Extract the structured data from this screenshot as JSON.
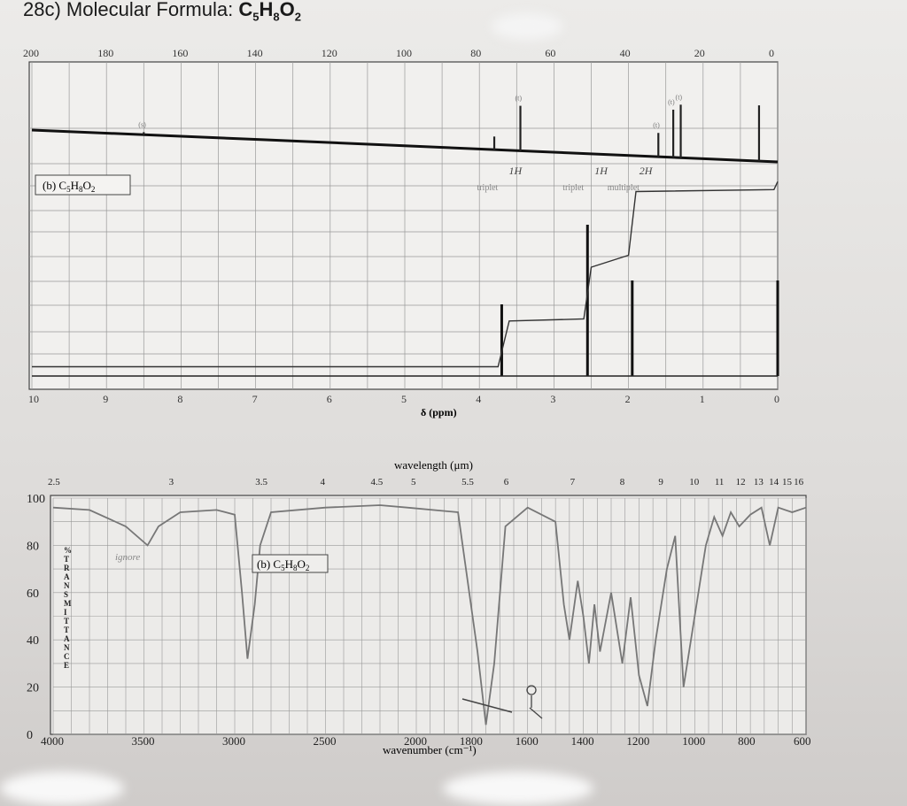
{
  "header": {
    "prefix": "28c) Molecular Formula: ",
    "formula": {
      "c": "C",
      "c_n": "5",
      "h": "H",
      "h_n": "8",
      "o": "O",
      "o_n": "2"
    }
  },
  "chart_data": [
    {
      "type": "line",
      "title": "",
      "panel": "13C NMR",
      "xlabel": "",
      "x_ticks": [
        200,
        180,
        160,
        140,
        120,
        100,
        80,
        60,
        40,
        20,
        0
      ],
      "xlim": [
        200,
        0
      ],
      "peaks": [
        {
          "x": 170,
          "intensity": 0.05,
          "label": "(s)"
        },
        {
          "x": 76,
          "intensity": 0.25,
          "label": ""
        },
        {
          "x": 69,
          "intensity": 0.85,
          "label": "(t)"
        },
        {
          "x": 32,
          "intensity": 0.45,
          "label": "(t)"
        },
        {
          "x": 28,
          "intensity": 0.9,
          "label": "(t)"
        },
        {
          "x": 26,
          "intensity": 1.0,
          "label": "(t)"
        },
        {
          "x": 5,
          "intensity": 1.05,
          "label": ""
        }
      ]
    },
    {
      "type": "line",
      "panel": "1H NMR",
      "title": "(b) C5H8O2",
      "label_parts": {
        "pre": "(b) C",
        "c": "5",
        "h": "H",
        "h_n": "8",
        "o": "O",
        "o_n": "2"
      },
      "xlabel": "δ (ppm)",
      "x_ticks": [
        10,
        9,
        8,
        7,
        6,
        5,
        4,
        3,
        2,
        1,
        0
      ],
      "xlim": [
        10,
        0
      ],
      "peaks": [
        {
          "x": 3.7,
          "height": 0.45,
          "multiplicity": "triplet",
          "integration": "1H"
        },
        {
          "x": 2.55,
          "height": 0.95,
          "multiplicity": "triplet",
          "integration": "1H"
        },
        {
          "x": 1.95,
          "height": 0.6,
          "multiplicity": "multiplet",
          "integration": "2H"
        },
        {
          "x": 0.0,
          "height": 0.6,
          "multiplicity": "",
          "integration": ""
        }
      ],
      "integration_curve": [
        [
          10,
          0.02
        ],
        [
          3.75,
          0.02
        ],
        [
          3.6,
          0.25
        ],
        [
          2.6,
          0.26
        ],
        [
          2.5,
          0.52
        ],
        [
          2.0,
          0.58
        ],
        [
          1.9,
          0.9
        ],
        [
          0.05,
          0.91
        ],
        [
          0.0,
          0.95
        ]
      ]
    },
    {
      "type": "line",
      "panel": "IR",
      "title": "(b) C5H8O2",
      "label_parts": {
        "pre": "(b) C",
        "c": "5",
        "h": "H",
        "h_n": "8",
        "o": "O",
        "o_n": "2"
      },
      "xlabel": "wavenumber (cm⁻¹)",
      "xlabel_top": "wavelength (μm)",
      "ylabel": "% TRANSMITTANCE",
      "y_ticks": [
        0,
        20,
        40,
        60,
        80,
        100
      ],
      "ylim": [
        0,
        100
      ],
      "x_ticks_bottom": [
        "4000",
        "3500",
        "3000",
        "2500",
        "2000",
        "1800",
        "1600",
        "1400",
        "1200",
        "1000",
        "800",
        "600"
      ],
      "x_ticks_top": [
        "2.5",
        "3",
        "3.5",
        "4",
        "4.5",
        "5",
        "5.5",
        "6",
        "7",
        "8",
        "9",
        "10",
        "11",
        "12",
        "13",
        "14",
        "15",
        "16"
      ],
      "annotation": "ignore",
      "spectrum": [
        [
          4000,
          96
        ],
        [
          3800,
          95
        ],
        [
          3600,
          88
        ],
        [
          3480,
          80
        ],
        [
          3420,
          88
        ],
        [
          3300,
          94
        ],
        [
          3100,
          95
        ],
        [
          3000,
          93
        ],
        [
          2960,
          60
        ],
        [
          2930,
          32
        ],
        [
          2890,
          55
        ],
        [
          2860,
          80
        ],
        [
          2800,
          94
        ],
        [
          2500,
          96
        ],
        [
          2200,
          97
        ],
        [
          2050,
          96
        ],
        [
          1850,
          94
        ],
        [
          1780,
          35
        ],
        [
          1750,
          4
        ],
        [
          1720,
          30
        ],
        [
          1680,
          88
        ],
        [
          1600,
          96
        ],
        [
          1500,
          90
        ],
        [
          1470,
          55
        ],
        [
          1450,
          40
        ],
        [
          1420,
          65
        ],
        [
          1400,
          50
        ],
        [
          1380,
          30
        ],
        [
          1360,
          55
        ],
        [
          1340,
          35
        ],
        [
          1300,
          60
        ],
        [
          1260,
          30
        ],
        [
          1230,
          58
        ],
        [
          1200,
          25
        ],
        [
          1170,
          12
        ],
        [
          1140,
          40
        ],
        [
          1100,
          70
        ],
        [
          1070,
          84
        ],
        [
          1040,
          20
        ],
        [
          1000,
          50
        ],
        [
          960,
          80
        ],
        [
          930,
          92
        ],
        [
          900,
          84
        ],
        [
          870,
          94
        ],
        [
          840,
          88
        ],
        [
          800,
          93
        ],
        [
          760,
          96
        ],
        [
          730,
          80
        ],
        [
          700,
          96
        ],
        [
          650,
          94
        ],
        [
          600,
          96
        ]
      ]
    }
  ]
}
